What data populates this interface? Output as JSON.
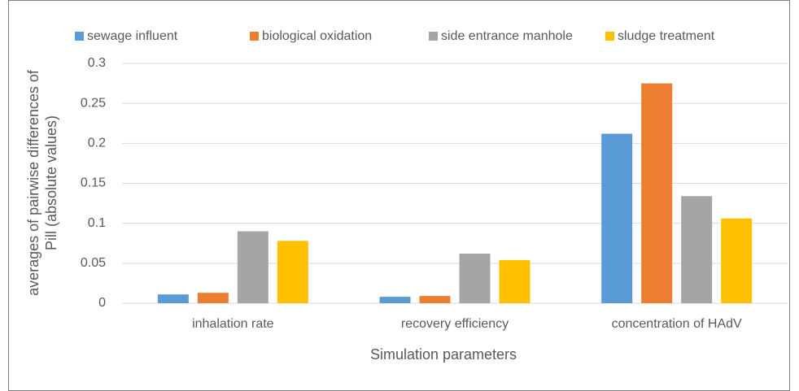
{
  "chart_data": {
    "type": "bar",
    "categories": [
      "inhalation rate",
      "recovery efficiency",
      "concentration of HAdV"
    ],
    "series": [
      {
        "name": "sewage influent",
        "color": "#5b9bd5",
        "values": [
          0.011,
          0.008,
          0.212
        ]
      },
      {
        "name": "biological oxidation",
        "color": "#ed7d31",
        "values": [
          0.013,
          0.009,
          0.275
        ]
      },
      {
        "name": "side entrance manhole",
        "color": "#a5a5a5",
        "values": [
          0.09,
          0.062,
          0.134
        ]
      },
      {
        "name": "sludge treatment",
        "color": "#ffc000",
        "values": [
          0.078,
          0.054,
          0.106
        ]
      }
    ],
    "xlabel": "Simulation parameters",
    "ylabel": [
      "averages of pairwise differences of",
      "Pill (absolute values)"
    ],
    "ylim": [
      0,
      0.3
    ],
    "yticks": [
      0,
      0.05,
      0.1,
      0.15,
      0.2,
      0.25,
      0.3
    ],
    "grid": true,
    "legend": "top"
  }
}
